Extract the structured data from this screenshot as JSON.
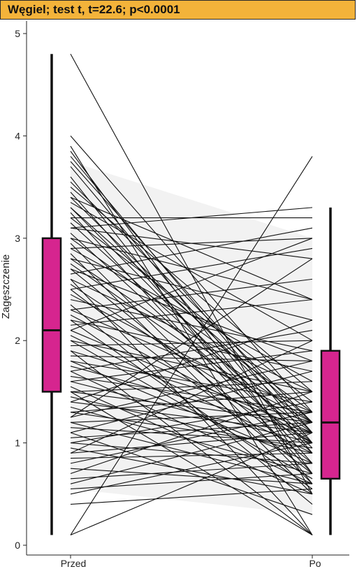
{
  "chart_data": {
    "type": "slope+box",
    "title": "Węgiel; test t, t=22.6; p<0.0001",
    "xlabel": "",
    "ylabel": "Zagęszczenie",
    "categories": [
      "Przed",
      "Po"
    ],
    "ylim": [
      0,
      5
    ],
    "y_ticks": [
      0,
      1,
      2,
      3,
      4,
      5
    ],
    "grid": false,
    "colors": {
      "title_bg": "#f3b33a",
      "box_fill": "#d6258f",
      "box_edge": "#111111",
      "lines": "#111111",
      "band": "#e8e8e8"
    },
    "boxplots": [
      {
        "name": "Przed",
        "min": 0.1,
        "q1": 1.5,
        "median": 2.1,
        "q3": 3.0,
        "max": 4.8
      },
      {
        "name": "Po",
        "min": 0.1,
        "q1": 0.65,
        "median": 1.2,
        "q3": 1.9,
        "max": 3.3
      }
    ],
    "pairs": [
      [
        4.8,
        0.5
      ],
      [
        4.0,
        1.3
      ],
      [
        3.9,
        0.1
      ],
      [
        3.85,
        0.7
      ],
      [
        3.8,
        1.0
      ],
      [
        3.75,
        1.1
      ],
      [
        3.7,
        0.9
      ],
      [
        3.6,
        0.6
      ],
      [
        3.55,
        1.2
      ],
      [
        3.5,
        1.5
      ],
      [
        3.45,
        0.8
      ],
      [
        3.4,
        1.1
      ],
      [
        3.35,
        2.0
      ],
      [
        3.3,
        0.95
      ],
      [
        3.3,
        1.2
      ],
      [
        3.25,
        0.7
      ],
      [
        3.2,
        1.4
      ],
      [
        3.2,
        3.2
      ],
      [
        3.15,
        1.0
      ],
      [
        3.1,
        3.3
      ],
      [
        3.1,
        2.8
      ],
      [
        3.05,
        0.9
      ],
      [
        3.0,
        1.3
      ],
      [
        3.0,
        2.4
      ],
      [
        2.95,
        0.6
      ],
      [
        2.9,
        3.0
      ],
      [
        2.9,
        1.6
      ],
      [
        2.85,
        0.5
      ],
      [
        2.8,
        2.2
      ],
      [
        2.75,
        1.1
      ],
      [
        2.7,
        1.8
      ],
      [
        2.7,
        0.8
      ],
      [
        2.65,
        3.1
      ],
      [
        2.6,
        1.5
      ],
      [
        2.55,
        1.0
      ],
      [
        2.5,
        2.9
      ],
      [
        2.5,
        0.7
      ],
      [
        2.45,
        1.2
      ],
      [
        2.4,
        1.9
      ],
      [
        2.35,
        0.4
      ],
      [
        2.3,
        1.3
      ],
      [
        2.3,
        2.6
      ],
      [
        2.25,
        1.0
      ],
      [
        2.2,
        1.7
      ],
      [
        2.2,
        0.55
      ],
      [
        2.15,
        2.4
      ],
      [
        2.1,
        1.1
      ],
      [
        2.1,
        3.0
      ],
      [
        2.05,
        0.9
      ],
      [
        2.0,
        1.5
      ],
      [
        2.0,
        0.65
      ],
      [
        1.95,
        2.0
      ],
      [
        1.9,
        1.2
      ],
      [
        1.9,
        0.1
      ],
      [
        1.85,
        1.8
      ],
      [
        1.8,
        0.8
      ],
      [
        1.8,
        1.4
      ],
      [
        1.75,
        1.1
      ],
      [
        1.7,
        2.1
      ],
      [
        1.7,
        0.6
      ],
      [
        1.65,
        1.3
      ],
      [
        1.6,
        1.0
      ],
      [
        1.6,
        1.9
      ],
      [
        1.55,
        0.5
      ],
      [
        1.5,
        1.6
      ],
      [
        1.5,
        1.2
      ],
      [
        1.5,
        0.1
      ],
      [
        1.45,
        0.9
      ],
      [
        1.4,
        2.2
      ],
      [
        1.4,
        1.1
      ],
      [
        1.35,
        0.7
      ],
      [
        1.3,
        1.5
      ],
      [
        1.3,
        0.95
      ],
      [
        1.25,
        1.8
      ],
      [
        1.2,
        0.6
      ],
      [
        1.2,
        1.3
      ],
      [
        1.15,
        1.0
      ],
      [
        1.1,
        0.3
      ],
      [
        1.1,
        1.7
      ],
      [
        1.05,
        1.2
      ],
      [
        1.0,
        0.8
      ],
      [
        1.0,
        1.4
      ],
      [
        0.95,
        0.5
      ],
      [
        0.9,
        1.1
      ],
      [
        0.9,
        2.0
      ],
      [
        0.85,
        0.9
      ],
      [
        0.8,
        1.3
      ],
      [
        0.75,
        0.6
      ],
      [
        0.7,
        1.5
      ],
      [
        0.65,
        0.8
      ],
      [
        0.6,
        1.2
      ],
      [
        0.55,
        0.7
      ],
      [
        0.5,
        1.0
      ],
      [
        0.4,
        0.55
      ],
      [
        0.1,
        3.8
      ],
      [
        0.1,
        1.1
      ],
      [
        2.6,
        0.1
      ],
      [
        3.4,
        2.4
      ],
      [
        1.25,
        2.8
      ],
      [
        2.8,
        1.2
      ]
    ]
  }
}
